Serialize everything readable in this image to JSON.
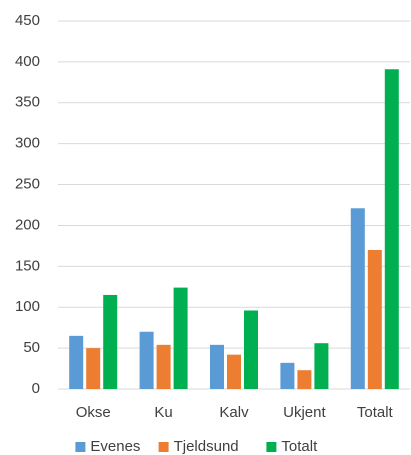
{
  "chart_data": {
    "type": "bar",
    "categories": [
      "Okse",
      "Ku",
      "Kalv",
      "Ukjent",
      "Totalt"
    ],
    "series": [
      {
        "name": "Evenes",
        "color": "#5b9bd5",
        "values": [
          65,
          70,
          54,
          32,
          221
        ]
      },
      {
        "name": "Tjeldsund",
        "color": "#ed7d31",
        "values": [
          50,
          54,
          42,
          23,
          170
        ]
      },
      {
        "name": "Totalt",
        "color": "#00b050",
        "values": [
          115,
          124,
          96,
          56,
          391
        ]
      }
    ],
    "ylim": [
      0,
      450
    ],
    "yticks": [
      0,
      50,
      100,
      150,
      200,
      250,
      300,
      350,
      400,
      450
    ],
    "grid": true,
    "legend": "bottom"
  }
}
